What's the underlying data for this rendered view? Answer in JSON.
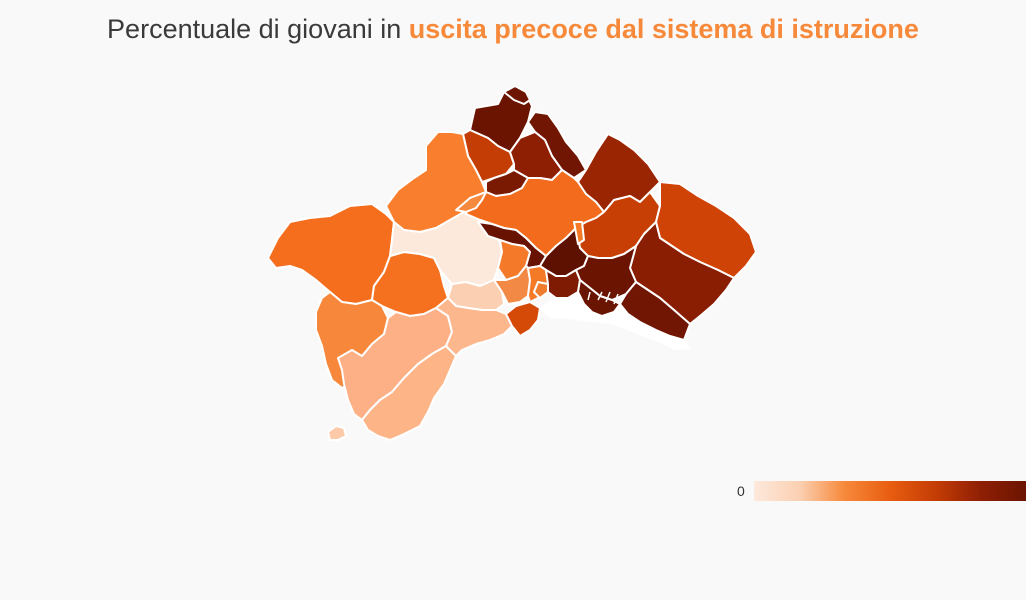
{
  "title": {
    "prefix": "Percentuale di giovani in ",
    "highlight": "uscita precoce dal sistema di istruzione",
    "highlight_color": "#f7893b"
  },
  "legend": {
    "min_label": "0",
    "gradient_colors": [
      "#fde9dc",
      "#fbd0b2",
      "#f7893b",
      "#e85d10",
      "#c43d05",
      "#8f1f03",
      "#6b1402"
    ]
  },
  "colors": {
    "background": "#f9f9f9",
    "boundary": "#ffffff",
    "sea_area": "#ffffff"
  },
  "municipalities": [
    {
      "id": "z01",
      "level": 0.95,
      "color": "#6b1402"
    },
    {
      "id": "z02",
      "level": 0.9,
      "color": "#701602"
    },
    {
      "id": "z03",
      "level": 0.75,
      "color": "#c43d05"
    },
    {
      "id": "z04",
      "level": 0.85,
      "color": "#8f1f03"
    },
    {
      "id": "z05",
      "level": 0.88,
      "color": "#7a1a02"
    },
    {
      "id": "z06",
      "level": 0.8,
      "color": "#9a2503"
    },
    {
      "id": "z07",
      "level": 0.55,
      "color": "#f97f2f"
    },
    {
      "id": "z08",
      "level": 0.62,
      "color": "#f36b1c"
    },
    {
      "id": "z09",
      "level": 0.6,
      "color": "#f56e1e"
    },
    {
      "id": "z10",
      "level": 0.58,
      "color": "#f5701f"
    },
    {
      "id": "z11",
      "level": 0.08,
      "color": "#fde9dc"
    },
    {
      "id": "z12",
      "level": 0.78,
      "color": "#b93805"
    },
    {
      "id": "z13",
      "level": 0.72,
      "color": "#c83f05"
    },
    {
      "id": "z14",
      "level": 0.92,
      "color": "#681302"
    },
    {
      "id": "z15",
      "level": 0.76,
      "color": "#cf4307"
    },
    {
      "id": "z16",
      "level": 0.86,
      "color": "#8a1e03"
    },
    {
      "id": "z17",
      "level": 0.96,
      "color": "#5f1101"
    },
    {
      "id": "z18",
      "level": 0.95,
      "color": "#6b1402"
    },
    {
      "id": "z19",
      "level": 0.9,
      "color": "#701602"
    },
    {
      "id": "z20",
      "level": 0.6,
      "color": "#f47a2a"
    },
    {
      "id": "z21",
      "level": 0.55,
      "color": "#f7873a"
    },
    {
      "id": "z22",
      "level": 0.3,
      "color": "#fdb086"
    },
    {
      "id": "z23",
      "level": 0.28,
      "color": "#fdb587"
    },
    {
      "id": "z24",
      "level": 0.2,
      "color": "#fbd0b2"
    },
    {
      "id": "z25",
      "level": 0.26,
      "color": "#fcb78d"
    },
    {
      "id": "z26",
      "level": 0.2,
      "color": "#fccaa8"
    },
    {
      "id": "z27",
      "level": 0.74,
      "color": "#d64a08"
    },
    {
      "id": "z28",
      "level": 0.58,
      "color": "#f28a45"
    },
    {
      "id": "z29",
      "level": 0.62,
      "color": "#f57a28"
    },
    {
      "id": "z30",
      "level": 0.88,
      "color": "#7f1b02"
    },
    {
      "id": "z31",
      "level": 0.97,
      "color": "#6a1402"
    },
    {
      "id": "z32",
      "level": 0.93,
      "color": "#6e1502"
    },
    {
      "id": "z33",
      "level": 0.6,
      "color": "#f58a3e"
    },
    {
      "id": "z34",
      "level": 0.6,
      "color": "#f07d2e"
    },
    {
      "id": "z35",
      "level": 0.55,
      "color": "#f57a28"
    }
  ]
}
